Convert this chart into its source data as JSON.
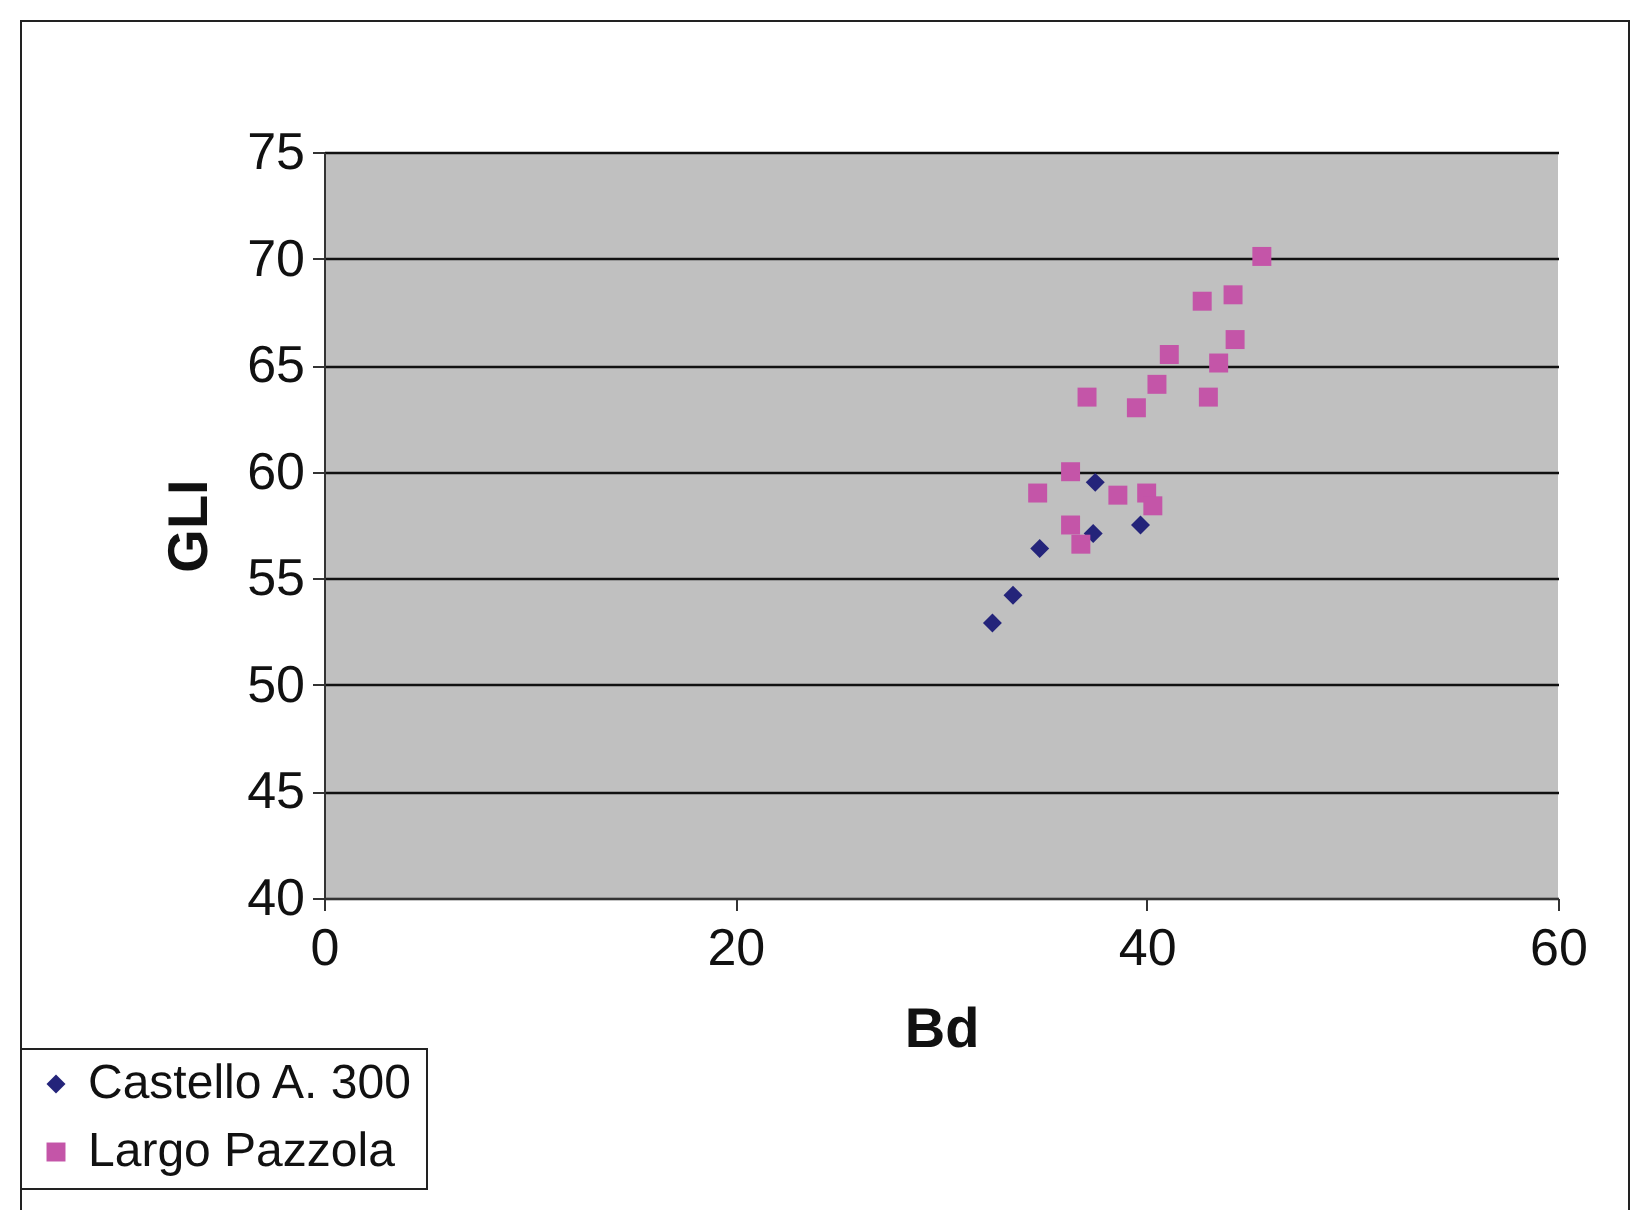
{
  "chart_data": {
    "type": "scatter",
    "xlabel": "Bd",
    "ylabel": "GLI",
    "xlim": [
      0,
      60
    ],
    "xticks": [
      0,
      20,
      40,
      60
    ],
    "ylim": [
      40,
      75
    ],
    "yticks": [
      40,
      45,
      50,
      55,
      60,
      65,
      70,
      75
    ],
    "grid": "y",
    "legend": "bottom left",
    "series": [
      {
        "name": "Castello A. 300",
        "color": "#24247a",
        "marker": "diamond",
        "x": [
          32.5,
          33.5,
          34.8,
          37.4,
          37.5,
          39.7
        ],
        "values": [
          52.9,
          54.2,
          56.4,
          57.1,
          59.5,
          57.5
        ]
      },
      {
        "name": "Largo Pazzola",
        "color": "#c455a8",
        "marker": "square",
        "x": [
          45.6,
          44.2,
          42.7,
          44.3,
          41.1,
          43.5,
          40.5,
          37.1,
          39.5,
          43.0,
          36.3,
          34.7,
          38.6,
          40.0,
          40.3,
          36.3,
          36.8
        ],
        "values": [
          70.1,
          68.3,
          68.0,
          66.2,
          65.5,
          65.1,
          64.1,
          63.5,
          63.0,
          63.5,
          60.0,
          59.0,
          58.9,
          59.0,
          58.4,
          57.5,
          56.6
        ]
      }
    ]
  }
}
